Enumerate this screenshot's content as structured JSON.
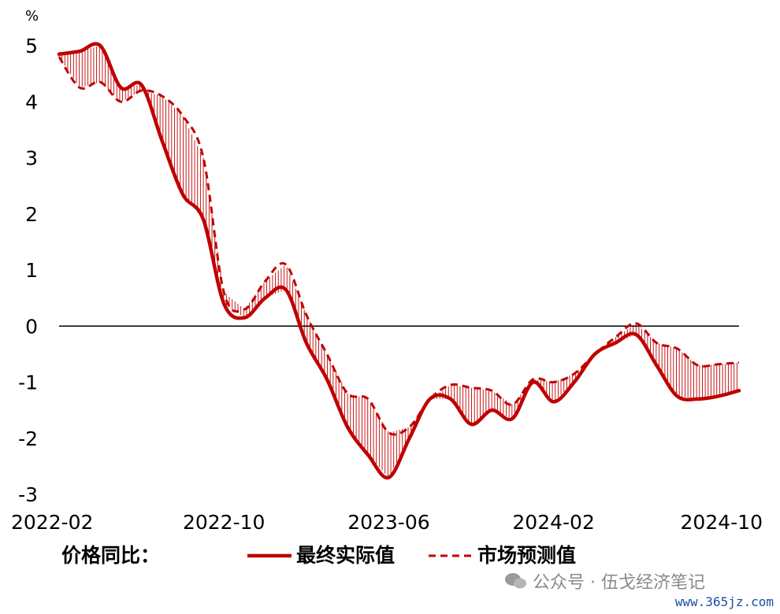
{
  "chart_data": {
    "type": "line",
    "unit_label": "%",
    "ylim": [
      -3,
      5
    ],
    "yticks": [
      "5",
      "4",
      "3",
      "2",
      "1",
      "0",
      "-1",
      "-2",
      "-3"
    ],
    "x_tick_labels": [
      "2022-02",
      "2022-10",
      "2023-06",
      "2024-02",
      "2024-10"
    ],
    "x_tick_positions": [
      0,
      8,
      16,
      24,
      32
    ],
    "zero_line": true,
    "shading": "vertical hatch between series",
    "legend_title": "价格同比：",
    "series": [
      {
        "name": "最终实际值",
        "style": "solid",
        "color": "#c00000",
        "x": [
          0,
          1,
          2,
          3,
          4,
          5,
          6,
          7,
          8,
          9,
          10,
          11,
          12,
          13,
          14,
          15,
          16,
          17,
          18,
          19,
          20,
          21,
          22,
          23,
          24,
          25,
          26,
          27,
          28,
          29,
          30,
          31,
          32,
          33
        ],
        "values": [
          4.85,
          4.9,
          5.0,
          4.25,
          4.3,
          3.3,
          2.35,
          1.9,
          0.4,
          0.15,
          0.5,
          0.65,
          -0.3,
          -0.95,
          -1.8,
          -2.3,
          -2.7,
          -2.0,
          -1.3,
          -1.3,
          -1.75,
          -1.5,
          -1.65,
          -1.0,
          -1.35,
          -1.0,
          -0.5,
          -0.3,
          -0.15,
          -0.7,
          -1.25,
          -1.3,
          -1.25,
          -1.15
        ]
      },
      {
        "name": "市场预测值",
        "style": "dashed",
        "color": "#c00000",
        "x": [
          0,
          1,
          2,
          3,
          4,
          5,
          6,
          7,
          8,
          9,
          10,
          11,
          12,
          13,
          14,
          15,
          16,
          17,
          18,
          19,
          20,
          21,
          22,
          23,
          24,
          25,
          26,
          27,
          28,
          29,
          30,
          31,
          32,
          33
        ],
        "values": [
          4.8,
          4.25,
          4.35,
          4.0,
          4.2,
          4.1,
          3.75,
          3.0,
          0.6,
          0.3,
          0.8,
          1.1,
          0.2,
          -0.5,
          -1.2,
          -1.3,
          -1.9,
          -1.8,
          -1.3,
          -1.05,
          -1.1,
          -1.15,
          -1.4,
          -0.95,
          -1.0,
          -0.85,
          -0.5,
          -0.2,
          0.05,
          -0.3,
          -0.4,
          -0.7,
          -0.68,
          -0.65
        ]
      }
    ]
  },
  "watermark": "公众号 · 伍戈经济笔记",
  "source_badge": "www.365jz.com"
}
